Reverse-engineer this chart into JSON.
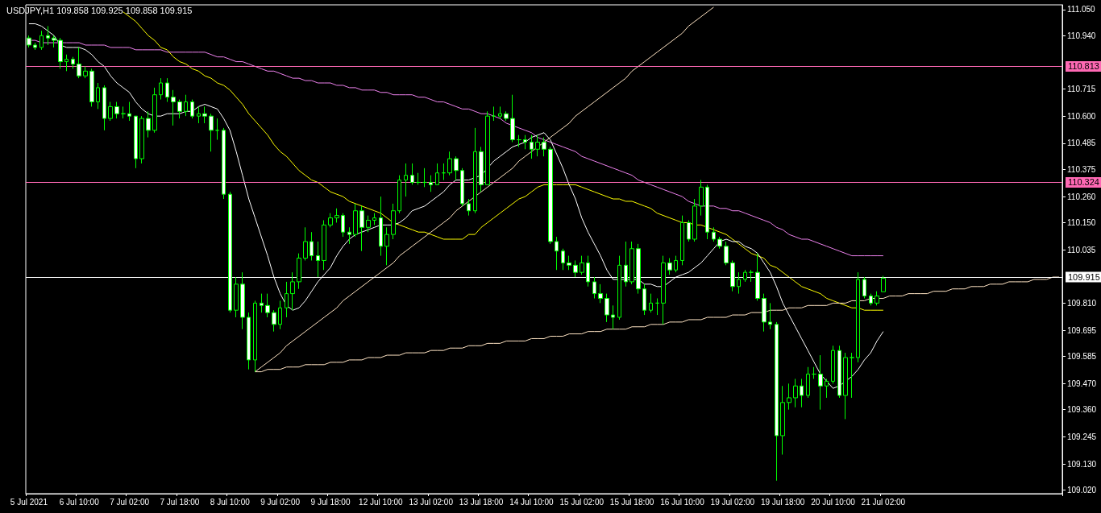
{
  "chart_data": {
    "type": "candlestick",
    "title": "USDJPY,H1 109.858 109.925 109.858 109.915",
    "color": "#00ff00",
    "categories": [
      "5 Jul 2021",
      null,
      null,
      null,
      null,
      null,
      null,
      null,
      "6 Jul 10:00",
      null,
      null,
      null,
      null,
      null,
      null,
      null,
      "7 Jul 02:00",
      null,
      null,
      null,
      null,
      null,
      null,
      null,
      "7 Jul 18:00",
      null,
      null,
      null,
      null,
      null,
      null,
      null,
      "8 Jul 10:00",
      null,
      null,
      null,
      null,
      null,
      null,
      null,
      "9 Jul 02:00",
      null,
      null,
      null,
      null,
      null,
      null,
      null,
      "9 Jul 18:00",
      null,
      null,
      null,
      null,
      null,
      null,
      null,
      "12 Jul 10:00",
      null,
      null,
      null,
      null,
      null,
      null,
      null,
      "13 Jul 02:00",
      null,
      null,
      null,
      null,
      null,
      null,
      null,
      "13 Jul 18:00",
      null,
      null,
      null,
      null,
      null,
      null,
      null,
      "14 Jul 10:00",
      null,
      null,
      null,
      null,
      null,
      null,
      null,
      "15 Jul 02:00",
      null,
      null,
      null,
      null,
      null,
      null,
      null,
      "15 Jul 18:00",
      null,
      null,
      null,
      null,
      null,
      null,
      null,
      "16 Jul 10:00",
      null,
      null,
      null,
      null,
      null,
      null,
      null,
      "19 Jul 02:00",
      null,
      null,
      null,
      null,
      null,
      null,
      null,
      "19 Jul 18:00",
      null,
      null,
      null,
      null,
      null,
      null,
      null,
      "20 Jul 10:00",
      null,
      null,
      null,
      null,
      null,
      null,
      null,
      "21 Jul 02:00",
      null,
      null,
      null,
      null,
      null,
      null,
      null,
      null,
      null,
      null,
      null,
      null,
      null,
      null,
      null,
      null,
      null,
      null,
      null,
      null,
      null,
      null,
      null,
      null,
      null,
      null,
      null,
      null
    ],
    "ohlc": [
      [
        110.93,
        110.94,
        110.89,
        110.9
      ],
      [
        110.9,
        110.91,
        110.88,
        110.89
      ],
      [
        110.89,
        110.96,
        110.88,
        110.94
      ],
      [
        110.94,
        110.98,
        110.9,
        110.93
      ],
      [
        110.93,
        110.94,
        110.89,
        110.92
      ],
      [
        110.92,
        110.93,
        110.8,
        110.83
      ],
      [
        110.83,
        110.86,
        110.79,
        110.84
      ],
      [
        110.84,
        110.85,
        110.8,
        110.82
      ],
      [
        110.82,
        110.89,
        110.76,
        110.77
      ],
      [
        110.77,
        110.81,
        110.76,
        110.79
      ],
      [
        110.79,
        110.8,
        110.64,
        110.66
      ],
      [
        110.66,
        110.74,
        110.63,
        110.72
      ],
      [
        110.72,
        110.73,
        110.54,
        110.59
      ],
      [
        110.59,
        110.66,
        110.58,
        110.64
      ],
      [
        110.64,
        110.66,
        110.59,
        110.61
      ],
      [
        110.61,
        110.64,
        110.59,
        110.61
      ],
      [
        110.61,
        110.66,
        110.58,
        110.6
      ],
      [
        110.6,
        110.6,
        110.38,
        110.42
      ],
      [
        110.42,
        110.6,
        110.4,
        110.59
      ],
      [
        110.59,
        110.62,
        110.51,
        110.54
      ],
      [
        110.54,
        110.72,
        110.53,
        110.69
      ],
      [
        110.69,
        110.76,
        110.67,
        110.74
      ],
      [
        110.74,
        110.76,
        110.66,
        110.68
      ],
      [
        110.68,
        110.71,
        110.56,
        110.66
      ],
      [
        110.66,
        110.67,
        110.59,
        110.62
      ],
      [
        110.62,
        110.69,
        110.6,
        110.66
      ],
      [
        110.66,
        110.67,
        110.59,
        110.6
      ],
      [
        110.6,
        110.64,
        110.57,
        110.61
      ],
      [
        110.61,
        110.64,
        110.57,
        110.6
      ],
      [
        110.6,
        110.61,
        110.45,
        110.54
      ],
      [
        110.54,
        110.59,
        110.5,
        110.54
      ],
      [
        110.54,
        110.55,
        110.25,
        110.27
      ],
      [
        110.27,
        110.28,
        109.77,
        109.78
      ],
      [
        109.78,
        109.92,
        109.75,
        109.89
      ],
      [
        109.89,
        109.94,
        109.7,
        109.75
      ],
      [
        109.75,
        109.77,
        109.53,
        109.57
      ],
      [
        109.57,
        109.82,
        109.52,
        109.81
      ],
      [
        109.81,
        109.85,
        109.77,
        109.8
      ],
      [
        109.8,
        109.85,
        109.75,
        109.77
      ],
      [
        109.77,
        109.78,
        109.69,
        109.72
      ],
      [
        109.72,
        109.82,
        109.7,
        109.79
      ],
      [
        109.79,
        109.9,
        109.75,
        109.85
      ],
      [
        109.85,
        109.94,
        109.78,
        109.9
      ],
      [
        109.9,
        110.02,
        109.87,
        110.0
      ],
      [
        110.0,
        110.13,
        109.99,
        110.07
      ],
      [
        110.07,
        110.11,
        109.99,
        110.01
      ],
      [
        110.01,
        110.07,
        109.92,
        109.99
      ],
      [
        109.99,
        110.16,
        109.95,
        110.14
      ],
      [
        110.14,
        110.19,
        110.13,
        110.17
      ],
      [
        110.17,
        110.21,
        110.15,
        110.18
      ],
      [
        110.18,
        110.19,
        110.09,
        110.11
      ],
      [
        110.11,
        110.13,
        110.06,
        110.1
      ],
      [
        110.1,
        110.23,
        110.09,
        110.2
      ],
      [
        110.2,
        110.22,
        110.03,
        110.13
      ],
      [
        110.13,
        110.18,
        110.11,
        110.16
      ],
      [
        110.16,
        110.19,
        110.14,
        110.17
      ],
      [
        110.17,
        110.26,
        110.01,
        110.05
      ],
      [
        110.05,
        110.13,
        109.97,
        110.1
      ],
      [
        110.1,
        110.23,
        110.08,
        110.2
      ],
      [
        110.2,
        110.35,
        110.19,
        110.33
      ],
      [
        110.33,
        110.4,
        110.26,
        110.35
      ],
      [
        110.35,
        110.4,
        110.31,
        110.32
      ],
      [
        110.32,
        110.36,
        110.31,
        110.32
      ],
      [
        110.32,
        110.38,
        110.3,
        110.32
      ],
      [
        110.32,
        110.35,
        110.28,
        110.31
      ],
      [
        110.31,
        110.4,
        110.31,
        110.36
      ],
      [
        110.36,
        110.4,
        110.33,
        110.36
      ],
      [
        110.36,
        110.45,
        110.35,
        110.42
      ],
      [
        110.42,
        110.43,
        110.33,
        110.37
      ],
      [
        110.37,
        110.38,
        110.22,
        110.23
      ],
      [
        110.23,
        110.25,
        110.18,
        110.2
      ],
      [
        110.2,
        110.55,
        110.19,
        110.45
      ],
      [
        110.45,
        110.47,
        110.28,
        110.31
      ],
      [
        110.31,
        110.62,
        110.31,
        110.6
      ],
      [
        110.6,
        110.64,
        110.58,
        110.6
      ],
      [
        110.6,
        110.64,
        110.59,
        110.61
      ],
      [
        110.61,
        110.62,
        110.58,
        110.59
      ],
      [
        110.59,
        110.69,
        110.49,
        110.5
      ],
      [
        110.5,
        110.52,
        110.47,
        110.5
      ],
      [
        110.5,
        110.52,
        110.46,
        110.49
      ],
      [
        110.49,
        110.52,
        110.42,
        110.46
      ],
      [
        110.46,
        110.52,
        110.43,
        110.49
      ],
      [
        110.49,
        110.51,
        110.43,
        110.46
      ],
      [
        110.46,
        110.47,
        110.06,
        110.07
      ],
      [
        110.07,
        110.09,
        109.95,
        110.03
      ],
      [
        110.03,
        110.04,
        109.95,
        109.98
      ],
      [
        109.98,
        110.01,
        109.95,
        109.97
      ],
      [
        109.97,
        109.99,
        109.92,
        109.94
      ],
      [
        109.94,
        110.01,
        109.93,
        109.98
      ],
      [
        109.98,
        110.01,
        109.88,
        109.9
      ],
      [
        109.9,
        109.92,
        109.83,
        109.85
      ],
      [
        109.85,
        109.89,
        109.81,
        109.83
      ],
      [
        109.83,
        109.85,
        109.73,
        109.76
      ],
      [
        109.76,
        109.8,
        109.7,
        109.75
      ],
      [
        109.75,
        110.01,
        109.74,
        109.97
      ],
      [
        109.97,
        110.07,
        109.88,
        109.9
      ],
      [
        109.9,
        110.07,
        109.89,
        110.04
      ],
      [
        110.04,
        110.06,
        109.85,
        109.87
      ],
      [
        109.87,
        109.89,
        109.76,
        109.78
      ],
      [
        109.78,
        109.85,
        109.77,
        109.81
      ],
      [
        109.81,
        109.83,
        109.76,
        109.81
      ],
      [
        109.81,
        110.01,
        109.72,
        109.98
      ],
      [
        109.98,
        110.0,
        109.93,
        109.95
      ],
      [
        109.95,
        110.01,
        109.94,
        109.99
      ],
      [
        109.99,
        110.18,
        109.97,
        110.15
      ],
      [
        110.15,
        110.16,
        110.07,
        110.08
      ],
      [
        110.08,
        110.25,
        110.07,
        110.22
      ],
      [
        110.22,
        110.33,
        110.18,
        110.3
      ],
      [
        110.3,
        110.31,
        110.08,
        110.11
      ],
      [
        110.11,
        110.13,
        110.07,
        110.08
      ],
      [
        110.08,
        110.09,
        110.04,
        110.05
      ],
      [
        110.05,
        110.07,
        109.97,
        109.98
      ],
      [
        109.98,
        109.99,
        109.86,
        109.88
      ],
      [
        109.88,
        109.94,
        109.85,
        109.91
      ],
      [
        109.91,
        109.95,
        109.9,
        109.94
      ],
      [
        109.94,
        109.95,
        109.9,
        109.94
      ],
      [
        109.94,
        110.02,
        109.82,
        109.83
      ],
      [
        109.83,
        109.85,
        109.69,
        109.73
      ],
      [
        109.73,
        109.81,
        109.7,
        109.72
      ],
      [
        109.72,
        109.73,
        109.06,
        109.25
      ],
      [
        109.25,
        109.46,
        109.17,
        109.39
      ],
      [
        109.39,
        109.47,
        109.36,
        109.41
      ],
      [
        109.41,
        109.49,
        109.37,
        109.46
      ],
      [
        109.46,
        109.49,
        109.37,
        109.42
      ],
      [
        109.42,
        109.54,
        109.41,
        109.51
      ],
      [
        109.51,
        109.54,
        109.49,
        109.51
      ],
      [
        109.51,
        109.59,
        109.36,
        109.46
      ],
      [
        109.46,
        109.49,
        109.41,
        109.48
      ],
      [
        109.48,
        109.63,
        109.47,
        109.61
      ],
      [
        109.61,
        109.63,
        109.41,
        109.42
      ],
      [
        109.42,
        109.6,
        109.32,
        109.58
      ],
      [
        109.58,
        109.6,
        109.41,
        109.58
      ],
      [
        109.58,
        109.94,
        109.56,
        109.91
      ],
      [
        109.91,
        109.92,
        109.83,
        109.84
      ],
      [
        109.84,
        109.85,
        109.8,
        109.81
      ],
      [
        109.81,
        109.86,
        109.8,
        109.84
      ],
      [
        109.858,
        109.925,
        109.858,
        109.915
      ],
      null,
      null,
      null,
      null,
      null,
      null,
      null,
      null,
      null,
      null,
      null,
      null,
      null,
      null,
      null,
      null,
      null,
      null,
      null,
      null,
      null,
      null,
      null,
      null,
      null,
      null,
      null,
      null
    ],
    "series": [
      {
        "type": "line",
        "color": "#ee82ee",
        "values": [
          110.92,
          110.92,
          110.91,
          110.91,
          110.91,
          110.91,
          110.91,
          110.91,
          110.91,
          110.9,
          110.9,
          110.9,
          110.9,
          110.89,
          110.89,
          110.89,
          110.89,
          110.88,
          110.88,
          110.88,
          110.88,
          110.88,
          110.87,
          110.87,
          110.87,
          110.87,
          110.87,
          110.87,
          110.87,
          110.86,
          110.85,
          110.85,
          110.84,
          110.83,
          110.83,
          110.82,
          110.81,
          110.8,
          110.79,
          110.79,
          110.78,
          110.77,
          110.76,
          110.76,
          110.75,
          110.75,
          110.74,
          110.74,
          110.74,
          110.73,
          110.73,
          110.72,
          110.72,
          110.71,
          110.71,
          110.71,
          110.7,
          110.7,
          110.69,
          110.69,
          110.69,
          110.69,
          110.68,
          110.68,
          110.67,
          110.66,
          110.66,
          110.65,
          110.64,
          110.63,
          110.63,
          110.62,
          110.61,
          110.61,
          110.6,
          110.59,
          110.57,
          110.56,
          110.55,
          110.54,
          110.53,
          110.51,
          110.5,
          110.49,
          110.48,
          110.47,
          110.46,
          110.45,
          110.43,
          110.42,
          110.41,
          110.4,
          110.39,
          110.38,
          110.37,
          110.36,
          110.35,
          110.33,
          110.32,
          110.31,
          110.3,
          110.29,
          110.28,
          110.27,
          110.26,
          110.24,
          110.23,
          110.22,
          110.22,
          110.22,
          110.21,
          110.21,
          110.2,
          110.2,
          110.19,
          110.18,
          110.17,
          110.16,
          110.15,
          110.13,
          110.12,
          110.1,
          110.09,
          110.08,
          110.08,
          110.07,
          110.06,
          110.05,
          110.04,
          110.03,
          110.02,
          110.01,
          110.01,
          110.01,
          110.01,
          110.01,
          110.01,
          null,
          null,
          null,
          null,
          null,
          null,
          null,
          null,
          null,
          null,
          null,
          null,
          null,
          null,
          null,
          null,
          null,
          null,
          null,
          null,
          null,
          null,
          null,
          null,
          null,
          null,
          null,
          null
        ]
      },
      {
        "type": "line",
        "color": "#ffff00",
        "values": [
          null,
          null,
          null,
          null,
          null,
          null,
          null,
          null,
          null,
          null,
          null,
          null,
          null,
          null,
          null,
          111.04,
          111.02,
          111.0,
          110.97,
          110.94,
          110.92,
          110.89,
          110.88,
          110.85,
          110.83,
          110.82,
          110.8,
          110.79,
          110.77,
          110.76,
          110.74,
          110.73,
          110.71,
          110.68,
          110.65,
          110.61,
          110.58,
          110.55,
          110.52,
          110.48,
          110.45,
          110.43,
          110.4,
          110.37,
          110.35,
          110.33,
          110.32,
          110.3,
          110.28,
          110.27,
          110.26,
          110.24,
          110.23,
          110.22,
          110.21,
          110.2,
          110.19,
          110.17,
          110.15,
          110.14,
          110.13,
          110.12,
          110.11,
          110.11,
          110.1,
          110.09,
          110.08,
          110.08,
          110.08,
          110.08,
          110.1,
          110.1,
          110.13,
          110.15,
          110.17,
          110.19,
          110.21,
          110.23,
          110.25,
          110.26,
          110.28,
          110.3,
          110.31,
          110.31,
          110.31,
          110.31,
          110.31,
          110.31,
          110.3,
          110.29,
          110.28,
          110.27,
          110.26,
          110.25,
          110.25,
          110.24,
          110.24,
          110.23,
          110.22,
          110.21,
          110.19,
          110.18,
          110.17,
          110.16,
          110.15,
          110.15,
          110.14,
          110.14,
          110.13,
          110.12,
          110.11,
          110.1,
          110.08,
          110.06,
          110.04,
          110.02,
          110.01,
          110.0,
          109.97,
          109.96,
          109.94,
          109.92,
          109.9,
          109.88,
          109.87,
          109.86,
          109.85,
          109.83,
          109.82,
          109.81,
          109.8,
          109.79,
          109.79,
          109.78,
          109.78,
          109.78,
          109.78,
          null,
          null,
          null,
          null,
          null,
          null,
          null,
          null,
          null,
          null,
          null,
          null,
          null,
          null,
          null,
          null,
          null,
          null,
          null,
          null,
          null,
          null,
          null,
          null,
          null,
          null,
          null,
          null
        ]
      },
      {
        "type": "line",
        "color": "#ffffff",
        "values": [
          110.99,
          110.99,
          110.98,
          110.96,
          110.94,
          110.9,
          110.89,
          110.89,
          110.89,
          110.88,
          110.86,
          110.83,
          110.81,
          110.77,
          110.74,
          110.72,
          110.7,
          110.66,
          110.63,
          110.61,
          110.6,
          110.6,
          110.61,
          110.61,
          110.61,
          110.62,
          110.62,
          110.64,
          110.65,
          110.64,
          110.63,
          110.59,
          110.54,
          110.45,
          110.35,
          110.25,
          110.17,
          110.09,
          110.01,
          109.92,
          109.85,
          109.8,
          109.78,
          109.79,
          109.82,
          109.86,
          109.9,
          109.93,
          109.96,
          110.01,
          110.05,
          110.08,
          110.1,
          110.11,
          110.12,
          110.13,
          110.14,
          110.14,
          110.14,
          110.15,
          110.17,
          110.2,
          110.21,
          110.22,
          110.24,
          110.26,
          110.28,
          110.31,
          110.33,
          110.33,
          110.33,
          110.34,
          110.35,
          110.38,
          110.41,
          110.43,
          110.45,
          110.47,
          110.48,
          110.49,
          110.51,
          110.52,
          110.53,
          110.5,
          110.44,
          110.38,
          110.31,
          110.25,
          110.17,
          110.11,
          110.06,
          110.01,
          109.95,
          109.91,
          109.91,
          109.91,
          109.91,
          109.91,
          109.89,
          109.89,
          109.88,
          109.88,
          109.9,
          109.92,
          109.93,
          109.94,
          109.96,
          109.98,
          110.01,
          110.04,
          110.07,
          110.08,
          110.07,
          110.07,
          110.05,
          110.04,
          110.02,
          109.98,
          109.94,
          109.88,
          109.81,
          109.76,
          109.71,
          109.66,
          109.61,
          109.56,
          109.51,
          109.48,
          109.45,
          109.46,
          109.48,
          109.5,
          109.53,
          109.57,
          109.6,
          109.65,
          109.69,
          null,
          null,
          null,
          null,
          null,
          null,
          null,
          null,
          null,
          null,
          null,
          null,
          null,
          null,
          null,
          null,
          null,
          null,
          null,
          null,
          null,
          null,
          null,
          null,
          null,
          null,
          null,
          null
        ]
      },
      {
        "type": "line",
        "color": "#ffe4c4",
        "values": [
          null,
          null,
          null,
          null,
          null,
          null,
          null,
          null,
          null,
          null,
          null,
          null,
          null,
          null,
          null,
          null,
          null,
          null,
          null,
          null,
          null,
          null,
          null,
          null,
          null,
          null,
          null,
          null,
          null,
          null,
          null,
          null,
          null,
          null,
          null,
          null,
          109.52,
          109.54,
          109.56,
          109.58,
          109.6,
          109.63,
          109.65,
          109.67,
          109.69,
          109.71,
          109.73,
          109.75,
          109.77,
          109.79,
          109.82,
          109.84,
          109.86,
          109.88,
          109.9,
          109.92,
          109.94,
          109.96,
          109.98,
          110.01,
          110.03,
          110.05,
          110.07,
          110.09,
          110.11,
          110.13,
          110.15,
          110.17,
          110.2,
          110.22,
          110.24,
          110.26,
          110.28,
          110.3,
          110.32,
          110.34,
          110.36,
          110.38,
          110.41,
          110.43,
          110.45,
          110.47,
          110.49,
          110.51,
          110.53,
          110.55,
          110.57,
          110.6,
          110.62,
          110.64,
          110.66,
          110.68,
          110.7,
          110.72,
          110.74,
          110.76,
          110.79,
          110.81,
          110.83,
          110.85,
          110.87,
          110.89,
          110.91,
          110.93,
          110.95,
          110.98,
          111.0,
          111.02,
          111.04,
          111.06,
          null,
          null,
          null,
          null,
          null,
          null,
          null,
          null,
          null,
          null,
          null,
          null,
          null,
          null,
          null,
          null,
          null,
          null,
          null,
          null,
          null,
          null,
          null,
          null,
          null,
          null,
          null,
          null,
          null,
          null,
          null,
          null,
          null,
          null,
          null,
          null,
          null,
          null,
          null,
          null,
          null,
          null,
          null,
          null,
          null,
          null,
          null,
          null,
          null,
          null,
          null,
          null,
          null,
          null,
          null
        ]
      },
      {
        "type": "line",
        "color": "#ffe4c4",
        "values": [
          null,
          null,
          null,
          null,
          null,
          null,
          null,
          null,
          null,
          null,
          null,
          null,
          null,
          null,
          null,
          null,
          null,
          null,
          null,
          null,
          null,
          null,
          null,
          null,
          null,
          null,
          null,
          null,
          null,
          null,
          null,
          null,
          null,
          null,
          null,
          null,
          109.52,
          109.52,
          109.53,
          109.53,
          109.53,
          109.54,
          109.54,
          109.54,
          109.55,
          109.55,
          109.55,
          109.55,
          109.56,
          109.56,
          109.56,
          109.57,
          109.57,
          109.57,
          109.58,
          109.58,
          109.58,
          109.59,
          109.59,
          109.59,
          109.6,
          109.6,
          109.6,
          109.6,
          109.61,
          109.61,
          109.61,
          109.62,
          109.62,
          109.62,
          109.63,
          109.63,
          109.63,
          109.64,
          109.64,
          109.64,
          109.65,
          109.65,
          109.65,
          109.65,
          109.66,
          109.66,
          109.66,
          109.67,
          109.67,
          109.67,
          109.68,
          109.68,
          109.68,
          109.69,
          109.69,
          109.69,
          109.7,
          109.7,
          109.7,
          109.7,
          109.71,
          109.71,
          109.71,
          109.72,
          109.72,
          109.72,
          109.73,
          109.73,
          109.73,
          109.74,
          109.74,
          109.74,
          109.75,
          109.75,
          109.75,
          109.75,
          109.76,
          109.76,
          109.76,
          109.77,
          109.77,
          109.77,
          109.78,
          109.78,
          109.78,
          109.79,
          109.79,
          109.79,
          109.8,
          109.8,
          109.8,
          109.8,
          109.81,
          109.81,
          109.81,
          109.82,
          109.82,
          109.82,
          109.83,
          109.83,
          109.83,
          109.84,
          109.84,
          109.84,
          109.85,
          109.85,
          109.85,
          109.85,
          109.86,
          109.86,
          109.86,
          109.87,
          109.87,
          109.87,
          109.88,
          109.88,
          109.88,
          109.89,
          109.89,
          109.89,
          109.9,
          109.9,
          109.9,
          109.9,
          109.91,
          109.91,
          109.91,
          109.92,
          109.92
        ]
      }
    ],
    "ylim": [
      109.005,
      111.07
    ],
    "yticks": [
      {
        "value": 109.02,
        "label": "109.020"
      },
      {
        "value": 109.13,
        "label": "109.130"
      },
      {
        "value": 109.245,
        "label": "109.245"
      },
      {
        "value": 109.36,
        "label": "109.360"
      },
      {
        "value": 109.47,
        "label": "109.470"
      },
      {
        "value": 109.585,
        "label": "109.585"
      },
      {
        "value": 109.695,
        "label": "109.695"
      },
      {
        "value": 109.81,
        "label": "109.810"
      },
      {
        "value": 110.035,
        "label": "110.035"
      },
      {
        "value": 110.15,
        "label": "110.150"
      },
      {
        "value": 110.26,
        "label": "110.260"
      },
      {
        "value": 110.375,
        "label": "110.375"
      },
      {
        "value": 110.485,
        "label": "110.485"
      },
      {
        "value": 110.6,
        "label": "110.600"
      },
      {
        "value": 110.715,
        "label": "110.715"
      },
      {
        "value": 110.94,
        "label": "110.940"
      },
      {
        "value": 111.05,
        "label": "111.050"
      }
    ],
    "ref_lines": [
      {
        "axis": "y",
        "value": 110.813,
        "label": "110.813",
        "color": "#ff69b4"
      },
      {
        "axis": "y",
        "value": 110.324,
        "label": "110.324",
        "color": "#ff69b4"
      },
      {
        "axis": "y",
        "value": 109.915,
        "label": "109.915",
        "color": "#ffffff"
      }
    ]
  }
}
